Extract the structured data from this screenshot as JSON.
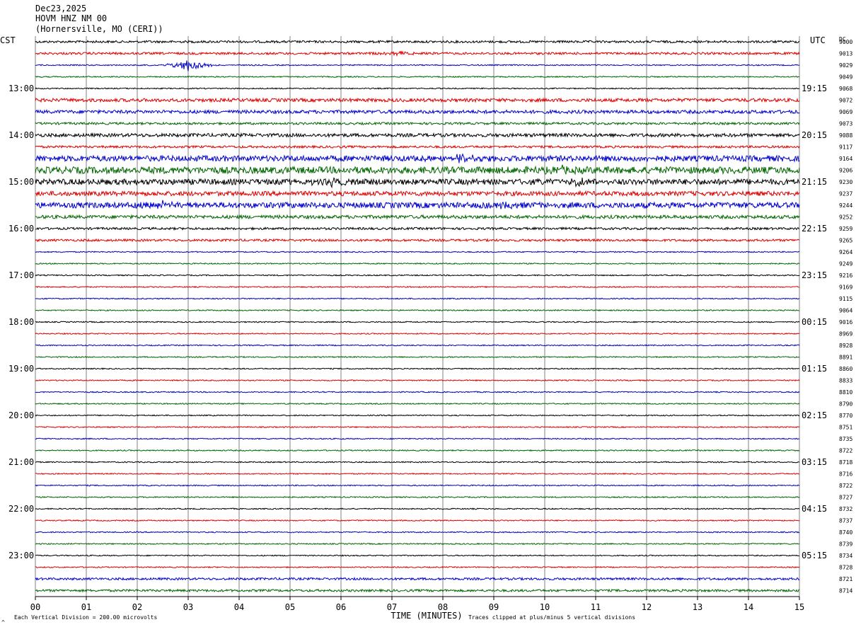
{
  "header": {
    "date": "Dec23,2025",
    "station": "HOVM HNZ NM 00",
    "location": "(Hornersville, MO (CERI))"
  },
  "labels": {
    "left_timezone": "CST",
    "right_timezone": "UTC",
    "dc": "DC",
    "x_axis_title": "TIME (MINUTES)",
    "scale_note": "Each Vertical Division =  200.00 microvolts",
    "clip_note": "Traces clipped at plus/minus 5 vertical divisions",
    "corner_mark": "^"
  },
  "colors": {
    "trace_cycle": [
      "#000000",
      "#dd0000",
      "#0000cc",
      "#006600"
    ],
    "grid": "#808080"
  },
  "chart_data": {
    "type": "line",
    "title": "HOVM HNZ NM 00",
    "xlabel": "TIME (MINUTES)",
    "xlim": [
      0,
      15
    ],
    "x_ticks": [
      "00",
      "01",
      "02",
      "03",
      "04",
      "05",
      "06",
      "07",
      "08",
      "09",
      "10",
      "11",
      "12",
      "13",
      "14",
      "15"
    ],
    "rows_per_hour": 4,
    "row_count": 48,
    "left_hour_labels": [
      "13:00",
      "14:00",
      "15:00",
      "16:00",
      "17:00",
      "18:00",
      "19:00",
      "20:00",
      "21:00",
      "22:00",
      "23:00"
    ],
    "right_hour_labels": [
      "19:15",
      "20:15",
      "21:15",
      "22:15",
      "23:15",
      "00:15",
      "01:15",
      "02:15",
      "03:15",
      "04:15",
      "05:15"
    ],
    "dc_offsets": [
      9000,
      9013,
      9029,
      9049,
      9068,
      9072,
      9069,
      9073,
      9088,
      9117,
      9164,
      9206,
      9230,
      9237,
      9244,
      9252,
      9259,
      9265,
      9264,
      9249,
      9216,
      9169,
      9115,
      9064,
      9016,
      8969,
      8928,
      8891,
      8860,
      8833,
      8810,
      8790,
      8770,
      8751,
      8735,
      8722,
      8718,
      8716,
      8722,
      8727,
      8732,
      8737,
      8740,
      8739,
      8734,
      8728,
      8721,
      8714
    ],
    "noise_level": [
      2,
      2,
      1,
      1,
      1,
      3,
      3,
      2,
      3,
      2,
      5,
      6,
      5,
      4,
      5,
      3,
      2,
      2,
      1,
      1,
      1,
      1,
      1,
      1,
      1,
      1,
      1,
      1,
      1,
      1,
      1,
      1,
      1,
      1,
      1,
      1,
      1,
      1,
      1,
      1,
      1,
      1,
      1,
      1,
      1,
      1,
      2,
      2
    ],
    "events": [
      {
        "row": 2,
        "minute": 3.0,
        "amplitude": 18
      },
      {
        "row": 1,
        "minute": 7.15,
        "amplitude": 6
      },
      {
        "row": 10,
        "minute": 8.4,
        "amplitude": 10
      },
      {
        "row": 11,
        "minute": 10.3,
        "amplitude": 9
      },
      {
        "row": 12,
        "minute": 5.8,
        "amplitude": 9
      },
      {
        "row": 12,
        "minute": 10.6,
        "amplitude": 10
      },
      {
        "row": 14,
        "minute": 2.5,
        "amplitude": 7
      },
      {
        "row": 14,
        "minute": 9.2,
        "amplitude": 6
      }
    ]
  }
}
